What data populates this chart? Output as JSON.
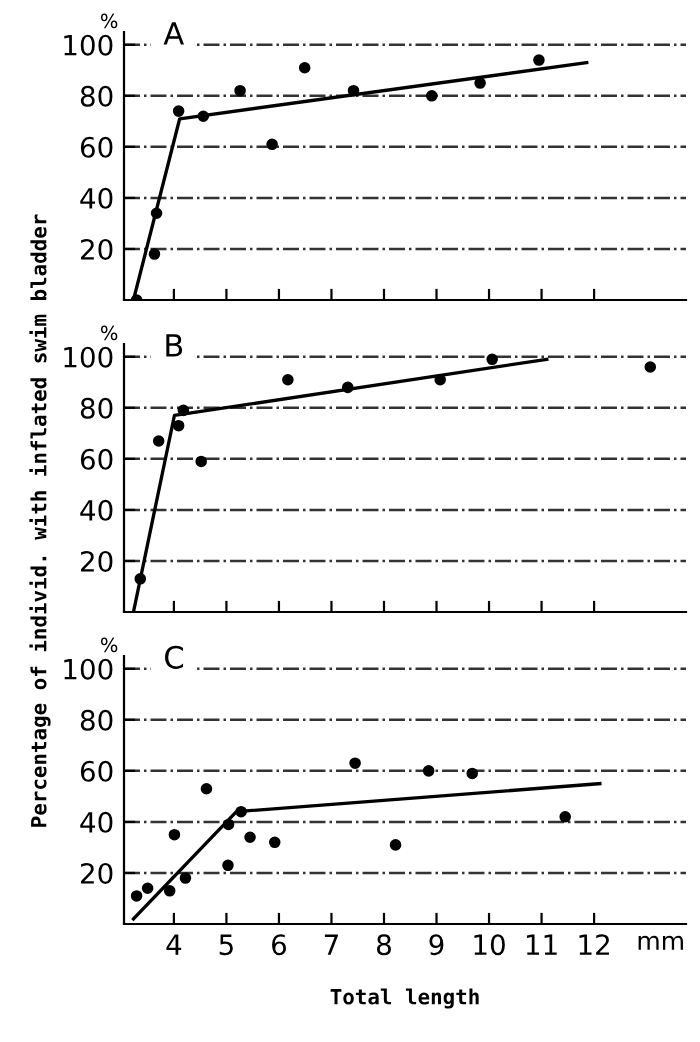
{
  "chart_data": [
    {
      "type": "scatter",
      "title": "A",
      "annotations": [
        "%"
      ],
      "xlim": [
        3.05,
        13.75
      ],
      "xticks": [
        4,
        5,
        6,
        7,
        8,
        9,
        10,
        11,
        12
      ],
      "ylim": [
        0,
        105
      ],
      "yticks": [
        20,
        40,
        60,
        80,
        100
      ],
      "tick_labels": "y",
      "grid": "y",
      "series": [
        {
          "marker": "circle",
          "color": "#000000",
          "x": [
            3.29,
            3.63,
            3.67,
            4.09,
            4.56,
            5.26,
            5.87,
            6.49,
            7.42,
            8.91,
            9.83,
            10.95
          ],
          "values": [
            0,
            18,
            34,
            74,
            72,
            82,
            61,
            91,
            82,
            80,
            85,
            94
          ]
        },
        {
          "type": "line",
          "color": "#000000",
          "x": [
            3.23,
            4.11,
            11.86
          ],
          "values": [
            0,
            71,
            93
          ]
        }
      ]
    },
    {
      "type": "scatter",
      "title": "B",
      "ylabel": "Percentage of individ. with inflated swim bladder",
      "annotations": [
        "%"
      ],
      "xlim": [
        3.05,
        13.75
      ],
      "xticks": [
        4,
        5,
        6,
        7,
        8,
        9,
        10,
        11,
        12
      ],
      "ylim": [
        0,
        105
      ],
      "yticks": [
        20,
        40,
        60,
        80,
        100
      ],
      "tick_labels": "y",
      "grid": "y",
      "series": [
        {
          "marker": "circle",
          "color": "#000000",
          "x": [
            3.36,
            3.71,
            4.09,
            4.18,
            4.52,
            6.17,
            7.31,
            9.07,
            10.06,
            13.07
          ],
          "values": [
            13,
            67,
            73,
            79,
            59,
            91,
            88,
            91,
            99,
            96
          ]
        },
        {
          "type": "line",
          "color": "#000000",
          "x": [
            3.23,
            4.01,
            11.1
          ],
          "values": [
            0,
            77,
            99
          ]
        }
      ]
    },
    {
      "type": "scatter",
      "title": "C",
      "xlabel": "Total length",
      "annotations": [
        "%",
        "mm"
      ],
      "xlim": [
        3.05,
        13.75
      ],
      "xticks": [
        4,
        5,
        6,
        7,
        8,
        9,
        10,
        11,
        12
      ],
      "ylim": [
        0,
        105
      ],
      "yticks": [
        20,
        40,
        60,
        80,
        100
      ],
      "grid": "y",
      "series": [
        {
          "marker": "circle",
          "color": "#000000",
          "x": [
            3.29,
            3.5,
            3.92,
            4.01,
            4.22,
            4.62,
            5.03,
            5.04,
            5.28,
            5.45,
            5.92,
            7.45,
            8.22,
            8.85,
            9.68,
            11.45
          ],
          "values": [
            11,
            14,
            13,
            35,
            18,
            53,
            23,
            39,
            44,
            34,
            32,
            63,
            31,
            60,
            59,
            42
          ]
        },
        {
          "type": "line",
          "color": "#000000",
          "x": [
            3.23,
            5.19,
            12.11
          ],
          "values": [
            2,
            44,
            55
          ]
        }
      ]
    }
  ]
}
